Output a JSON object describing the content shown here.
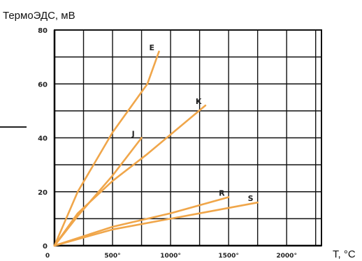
{
  "chart_data": {
    "type": "line",
    "ylabel": "ТермоЭДС, мВ",
    "xlabel": "T, °C",
    "xlim": [
      0,
      2300
    ],
    "ylim": [
      0,
      80
    ],
    "x_tick_values": [
      0,
      500,
      1000,
      1500,
      2000
    ],
    "x_tick_labels": [
      "0",
      "500°",
      "1000°",
      "1500°",
      "2000°"
    ],
    "y_ticks": [
      0,
      20,
      40,
      60,
      80
    ],
    "y_tick_labels": [
      "0",
      "20",
      "40",
      "60",
      "80"
    ],
    "grid": true,
    "line_color": "#f0a64a",
    "grid_color": "#111111",
    "series": [
      {
        "name": "E",
        "x": [
          0,
          200,
          500,
          800,
          900
        ],
        "y": [
          0,
          20,
          42,
          60,
          72
        ]
      },
      {
        "name": "K",
        "x": [
          0,
          200,
          500,
          800,
          1300
        ],
        "y": [
          0,
          12,
          24,
          34,
          52
        ]
      },
      {
        "name": "J",
        "x": [
          0,
          200,
          500,
          750
        ],
        "y": [
          0,
          11,
          26,
          40
        ]
      },
      {
        "name": "R",
        "x": [
          0,
          500,
          1000,
          1500
        ],
        "y": [
          0,
          7,
          12,
          18
        ]
      },
      {
        "name": "S",
        "x": [
          0,
          500,
          1000,
          1500,
          1750
        ],
        "y": [
          0,
          6,
          10,
          14,
          16
        ]
      }
    ]
  }
}
